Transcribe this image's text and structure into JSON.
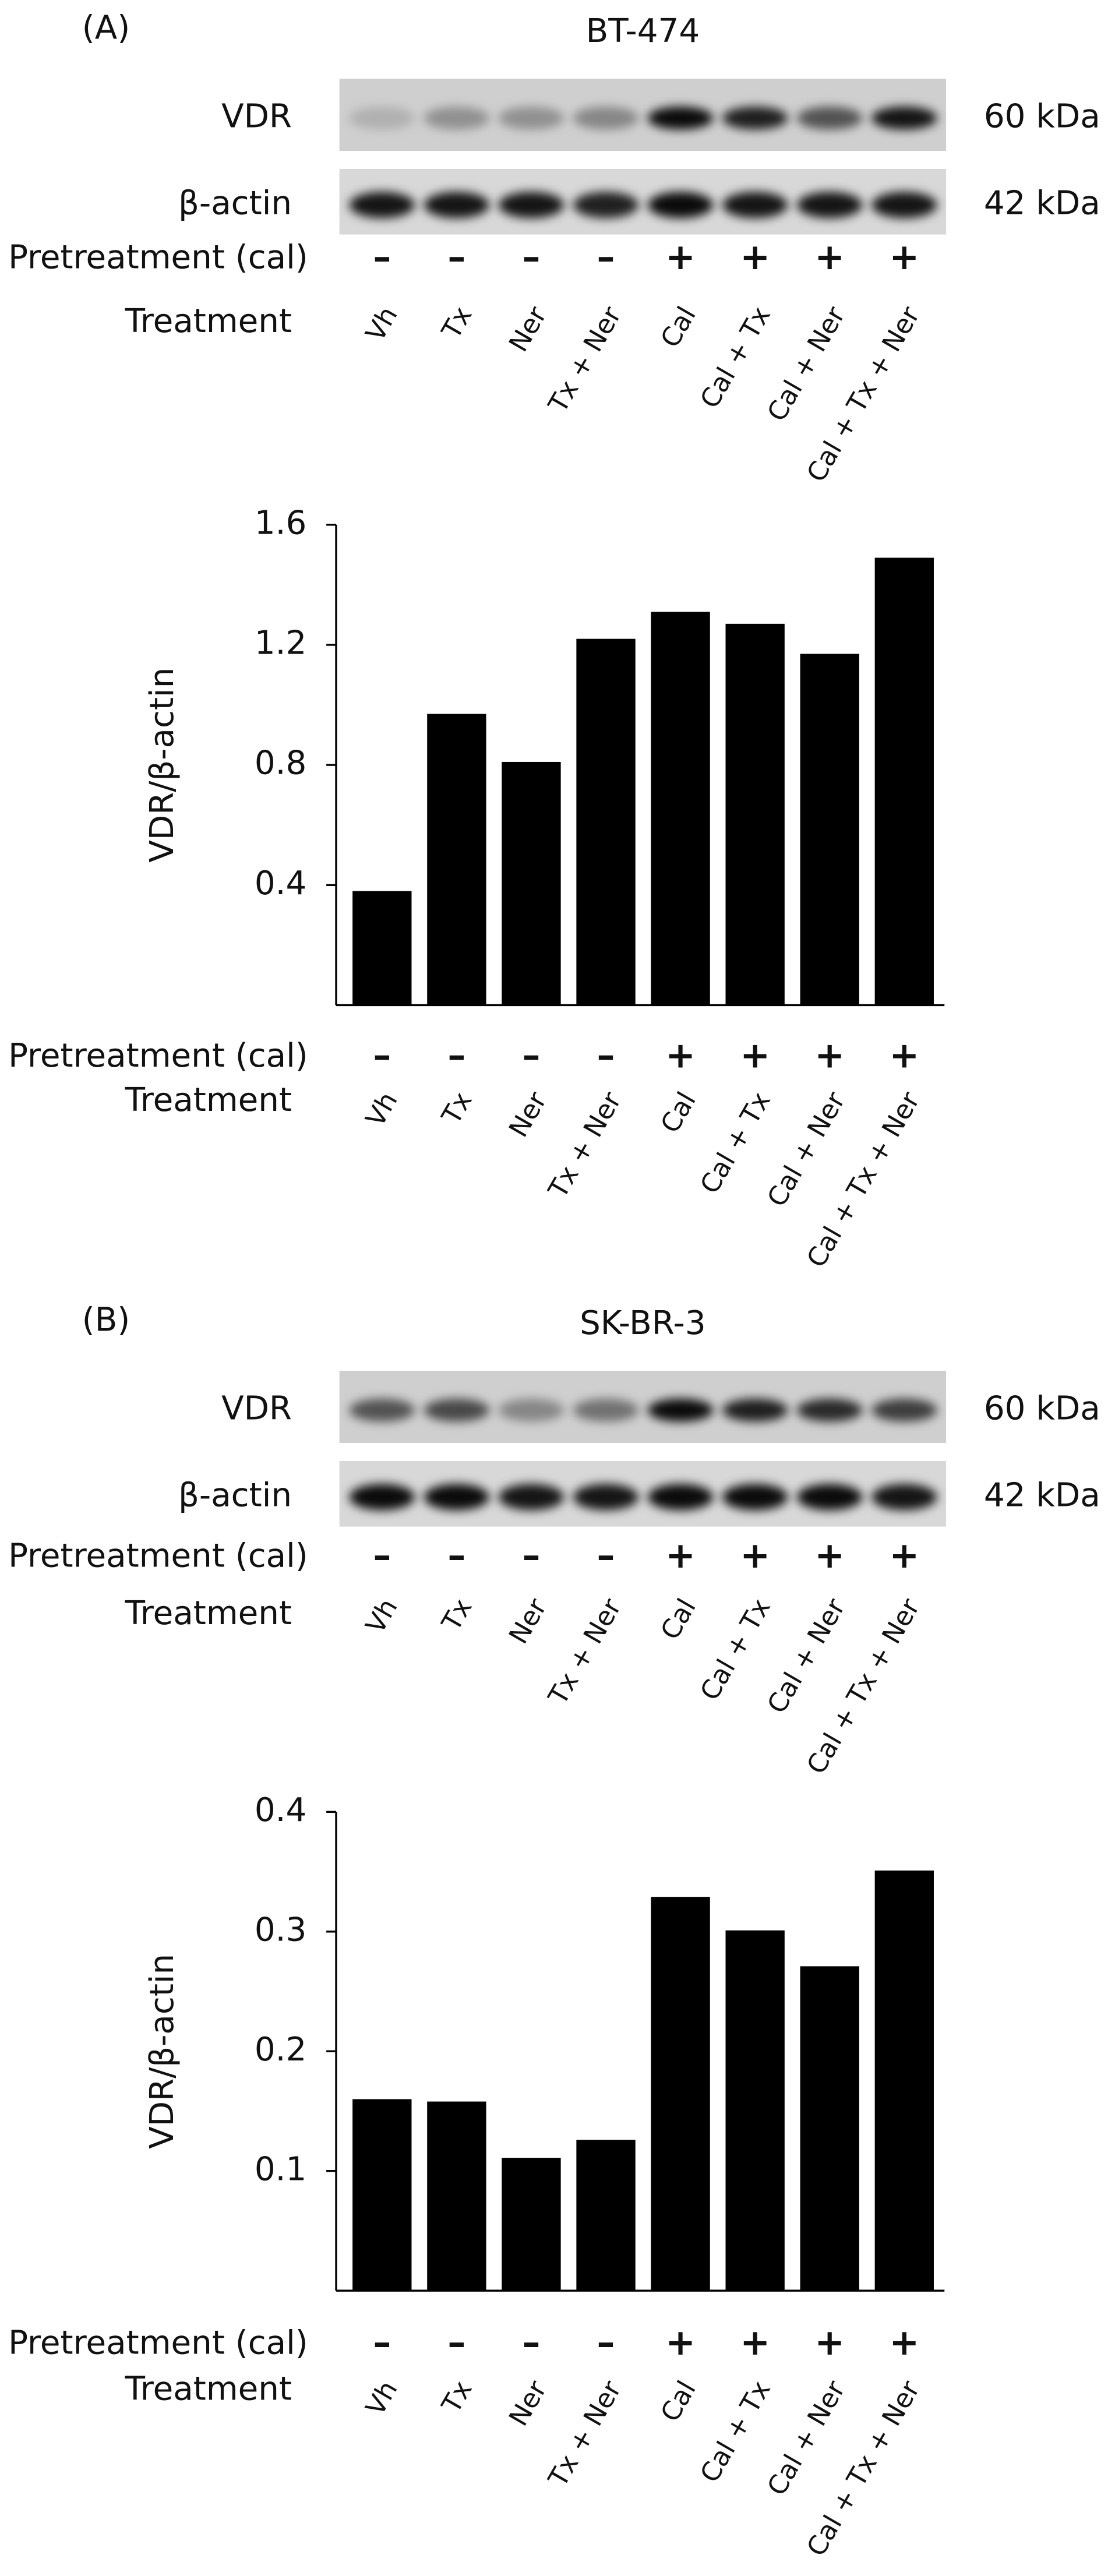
{
  "panels": [
    {
      "panel_label": "(A)",
      "cell_line": "BT-474",
      "blot_rows": [
        {
          "label": "VDR",
          "size": "60 kDa"
        },
        {
          "label": "β-actin",
          "size": "42 kDa"
        }
      ],
      "pretreatment_label": "Pretreatment (cal)",
      "pretreatment": [
        "–",
        "–",
        "–",
        "–",
        "+",
        "+",
        "+",
        "+"
      ],
      "treatment_label": "Treatment",
      "treatments": [
        "Vh",
        "Tx",
        "Ner",
        "Tx + Ner",
        "Cal",
        "Cal + Tx",
        "Cal + Ner",
        "Cal + Tx + Ner"
      ]
    },
    {
      "panel_label": "(B)",
      "cell_line": "SK-BR-3",
      "blot_rows": [
        {
          "label": "VDR",
          "size": "60 kDa"
        },
        {
          "label": "β-actin",
          "size": "42 kDa"
        }
      ],
      "pretreatment_label": "Pretreatment (cal)",
      "pretreatment": [
        "–",
        "–",
        "–",
        "–",
        "+",
        "+",
        "+",
        "+"
      ],
      "treatment_label": "Treatment",
      "treatments": [
        "Vh",
        "Tx",
        "Ner",
        "Tx + Ner",
        "Cal",
        "Cal + Tx",
        "Cal + Ner",
        "Cal + Tx + Ner"
      ]
    }
  ],
  "chart_data": [
    {
      "type": "bar",
      "ylabel": "VDR/β-actin",
      "categories": [
        "Vh",
        "Tx",
        "Ner",
        "Tx + Ner",
        "Cal",
        "Cal + Tx",
        "Cal + Ner",
        "Cal + Tx + Ner"
      ],
      "values": [
        0.38,
        0.97,
        0.81,
        1.22,
        1.31,
        1.27,
        1.17,
        1.49
      ],
      "color": "#000000",
      "ylim": [
        0,
        1.6
      ],
      "yticks": [
        0.4,
        0.8,
        1.2,
        1.6
      ],
      "pretreatment_label": "Pretreatment (cal)",
      "pretreatment": [
        "–",
        "–",
        "–",
        "–",
        "+",
        "+",
        "+",
        "+"
      ],
      "treatment_label": "Treatment"
    },
    {
      "type": "bar",
      "ylabel": "VDR/β-actin",
      "categories": [
        "Vh",
        "Tx",
        "Ner",
        "Tx + Ner",
        "Cal",
        "Cal + Tx",
        "Cal + Ner",
        "Cal + Tx + Ner"
      ],
      "values": [
        0.16,
        0.158,
        0.111,
        0.126,
        0.329,
        0.301,
        0.271,
        0.351
      ],
      "color": "#000000",
      "ylim": [
        0,
        0.4
      ],
      "yticks": [
        0.1,
        0.2,
        0.3,
        0.4
      ],
      "pretreatment_label": "Pretreatment (cal)",
      "pretreatment": [
        "–",
        "–",
        "–",
        "–",
        "+",
        "+",
        "+",
        "+"
      ],
      "treatment_label": "Treatment"
    }
  ]
}
